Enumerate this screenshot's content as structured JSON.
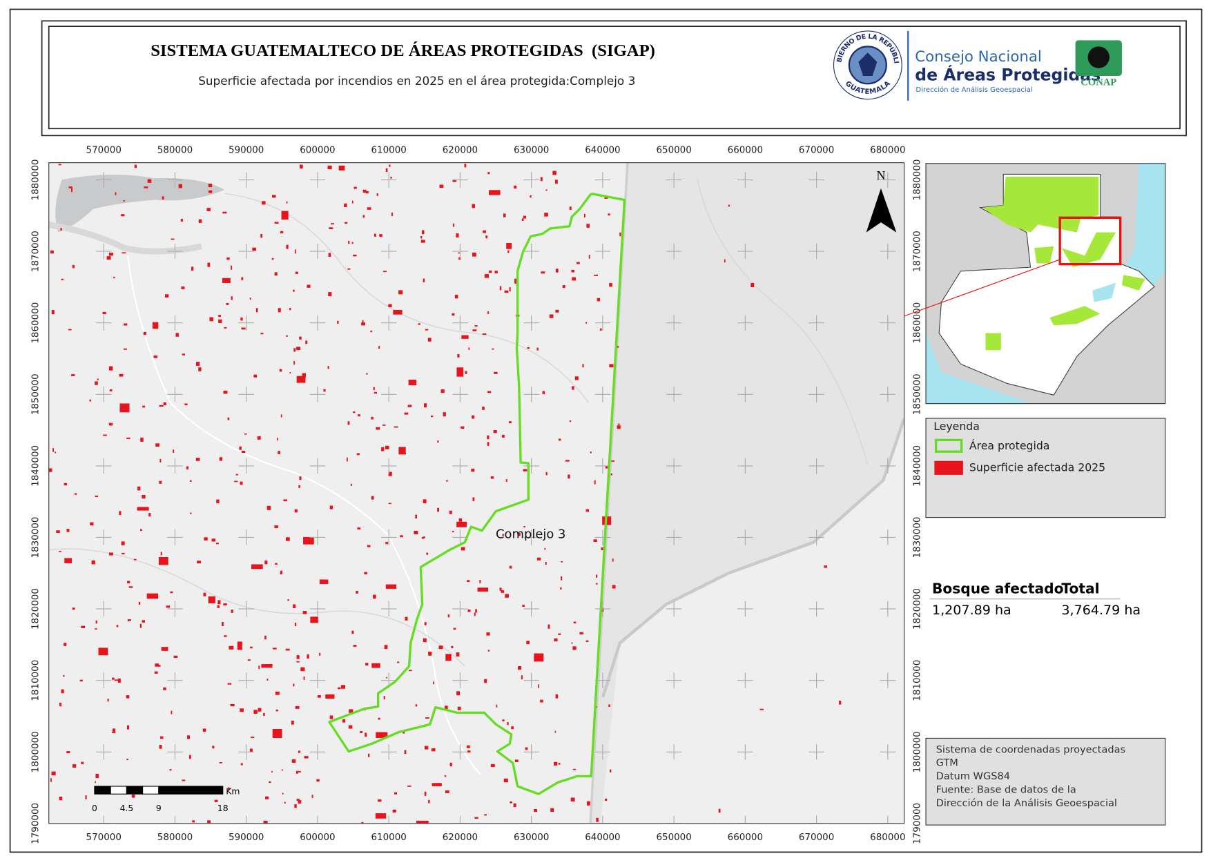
{
  "header": {
    "title": "SISTEMA GUATEMALTECO DE ÁREAS PROTEGIDAS  (SIGAP)",
    "subtitle": "Superficie afectada por incendios en 2025 en el área protegida:Complejo 3"
  },
  "logos": {
    "seal_top": "GOBIERNO DE LA REPÚBLICA",
    "seal_bottom": "GUATEMALA",
    "conap_line1": "Consejo Nacional",
    "conap_line2": "de Áreas Protegidas",
    "conap_line3": "Dirección de Análisis Geoespacial",
    "conap_badge": "CONAP"
  },
  "map": {
    "xlim": [
      562300,
      682300
    ],
    "ylim": [
      1790000,
      1882400
    ],
    "xticks": [
      570000,
      580000,
      590000,
      600000,
      610000,
      620000,
      630000,
      640000,
      650000,
      660000,
      670000,
      680000
    ],
    "yticks": [
      1790000,
      1800000,
      1810000,
      1820000,
      1830000,
      1840000,
      1850000,
      1860000,
      1870000,
      1880000
    ],
    "north": "N",
    "area_label": "Complejo 3"
  },
  "scale_bar": {
    "ticks": [
      0,
      4.5,
      9,
      18
    ],
    "unit": "Km"
  },
  "legend": {
    "title": "Leyenda",
    "items": [
      {
        "label": "Área protegida",
        "color": "#66dd22"
      },
      {
        "label": "Superficie afectada 2025",
        "color": "#e8141c"
      }
    ]
  },
  "summary": {
    "headers": [
      "Bosque afectado",
      "Total"
    ],
    "values": [
      "1,207.89 ha",
      "3,764.79 ha"
    ]
  },
  "info": {
    "lines": [
      "Sistema de coordenadas proyectadas",
      "GTM",
      "Datum WGS84",
      "Fuente: Base de datos de la",
      "Dirección de la Análisis Geoespacial"
    ]
  }
}
